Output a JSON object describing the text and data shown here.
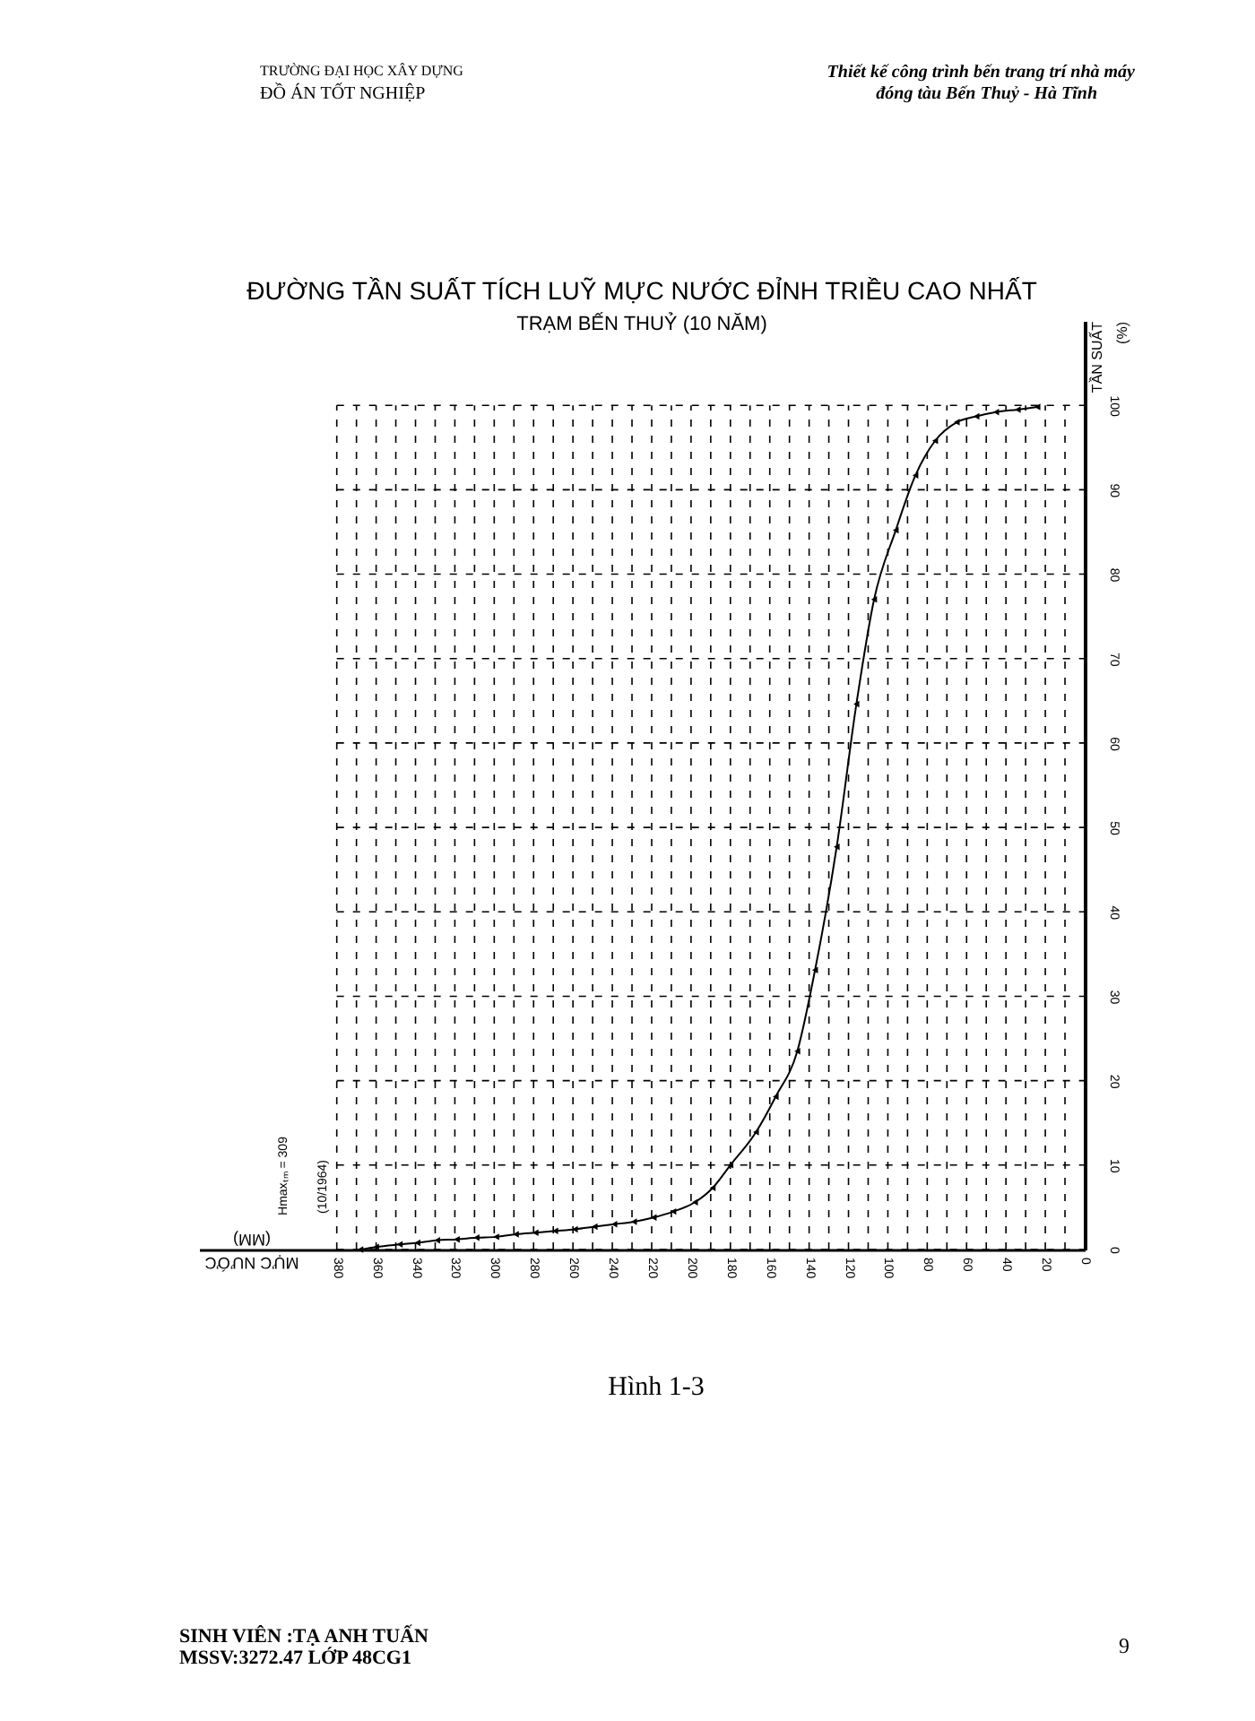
{
  "chart_data": {
    "type": "line",
    "title": "ĐƯỜNG TẦN SUẤT TÍCH LUỸ MỰC NƯỚC ĐỈNH TRIỀU CAO NHẤT",
    "subtitle": "TRẠM BẾN THUỶ (10 NĂM)",
    "xlabel": "MỰC NƯỚC (MM)",
    "ylabel": "TẦN SUẤT (%)",
    "x": [
      368,
      360,
      348,
      339,
      329,
      319,
      309,
      299,
      289,
      279,
      269,
      259,
      249,
      239,
      229,
      219,
      209,
      198,
      189,
      180,
      167,
      157,
      146,
      137,
      126,
      116,
      107,
      96,
      86,
      76,
      65,
      55,
      45,
      34,
      24
    ],
    "series": [
      {
        "color": "#000000",
        "values": [
          0,
          0.3,
          0.6,
          0.8,
          1.1,
          1.2,
          1.4,
          1.5,
          1.8,
          2.0,
          2.2,
          2.4,
          2.7,
          3.0,
          3.3,
          3.8,
          4.5,
          5.6,
          7.3,
          10.0,
          13.9,
          18.1,
          23.5,
          33.1,
          47.7,
          64.6,
          77.0,
          85.2,
          91.7,
          95.8,
          98.0,
          98.7,
          99.2,
          99.5,
          99.8
        ]
      }
    ],
    "xlim": [
      450,
      0
    ],
    "ylim": [
      0,
      110
    ],
    "xticks": [
      380,
      {
        "value": 370,
        "label": null
      },
      360,
      {
        "value": 350,
        "label": null
      },
      340,
      {
        "value": 330,
        "label": null
      },
      320,
      {
        "value": 310,
        "label": null
      },
      300,
      {
        "value": 290,
        "label": null
      },
      280,
      {
        "value": 270,
        "label": null
      },
      260,
      {
        "value": 250,
        "label": null
      },
      240,
      {
        "value": 230,
        "label": null
      },
      220,
      {
        "value": 210,
        "label": null
      },
      200,
      {
        "value": 190,
        "label": null
      },
      180,
      {
        "value": 170,
        "label": null
      },
      160,
      {
        "value": 150,
        "label": null
      },
      140,
      {
        "value": 130,
        "label": null
      },
      120,
      {
        "value": 110,
        "label": null
      },
      100,
      {
        "value": 90,
        "label": null
      },
      80,
      {
        "value": 70,
        "label": null
      },
      60,
      {
        "value": 50,
        "label": null
      },
      40,
      {
        "value": 30,
        "label": null
      },
      20,
      {
        "value": 10,
        "label": null
      },
      0
    ],
    "yticks": [
      0,
      10,
      20,
      30,
      40,
      50,
      60,
      70,
      80,
      90,
      100
    ],
    "grid": true,
    "marker": "triangle",
    "line_style": "solid",
    "annotations": [
      "Hmaxₜₘ = 309",
      "(10/1964)",
      "Hình 1-3",
      "TRƯỜNG ĐẠI HỌC XÂY DỰNG",
      "ĐỒ ÁN TỐT NGHIỆP",
      "Thiết kế công trình bến trang trí nhà máy",
      "đóng tàu Bến Thuỷ - Hà Tĩnh",
      "SINH VIÊN :TẠ ANH TUẤN",
      "MSSV:3272.47  LỚP 48CG1",
      "9"
    ]
  }
}
